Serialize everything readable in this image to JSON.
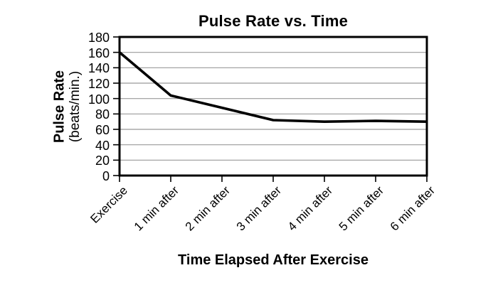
{
  "page": {
    "background": "#ffffff"
  },
  "chart_data": {
    "type": "line",
    "title": "Pulse Rate vs. Time",
    "xlabel": "Time Elapsed After Exercise",
    "ylabel": "Pulse Rate",
    "ylabel_sub": "(beats/min.)",
    "categories": [
      "Exercise",
      "1 min after",
      "2 min after",
      "3 min after",
      "4 min after",
      "5 min after",
      "6 min after"
    ],
    "values": [
      160,
      104,
      88,
      72,
      70,
      71,
      70
    ],
    "yticks": [
      180,
      160,
      140,
      120,
      100,
      80,
      60,
      40,
      20,
      0
    ],
    "ytick_labels": [
      "180",
      "160",
      "140",
      "120",
      "100",
      "80",
      "60",
      "40",
      "20",
      "0"
    ],
    "ylim": [
      0,
      180
    ],
    "grid": "horizontal gridlines at every 20",
    "legend": "none",
    "line_color": "#000000",
    "grid_color": "#999999",
    "axis_color": "#000000",
    "background_color": "#ffffff"
  }
}
